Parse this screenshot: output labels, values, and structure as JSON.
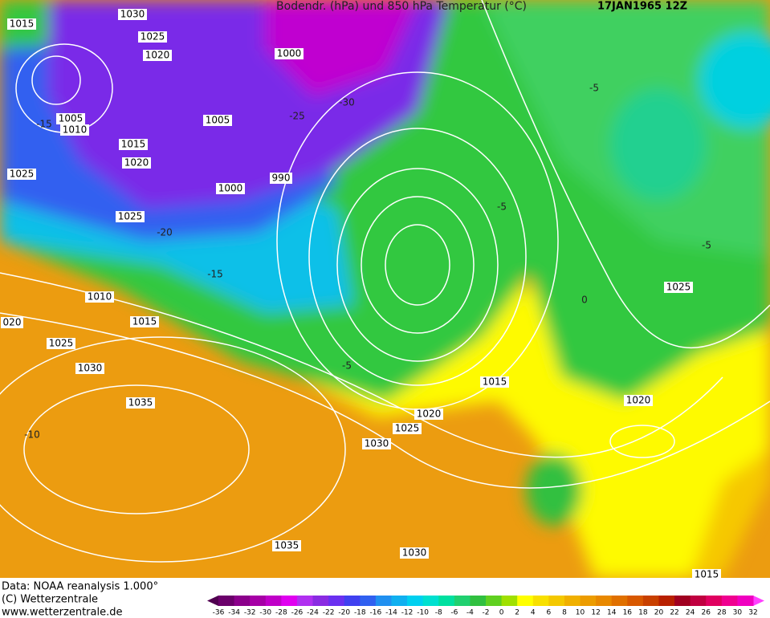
{
  "header": {
    "title": "Bodendr. (hPa) und 850 hPa Temperatur (°C)",
    "date": "17JAN1965 12Z"
  },
  "isobar_labels": [
    "1015",
    "1030",
    "1025",
    "1020",
    "1000",
    "1005",
    "1010",
    "1005",
    "1015",
    "1020",
    "1025",
    "1025",
    "1000",
    "990",
    "1025",
    "1010",
    "020",
    "1015",
    "1025",
    "1030",
    "1035",
    "1015",
    "1020",
    "1025",
    "1030",
    "1020",
    "1035",
    "1030",
    "1015"
  ],
  "temperature_labels": [
    "-15",
    "-30",
    "-25",
    "-20",
    "-15",
    "-5",
    "-5",
    "-5",
    "-5",
    "0",
    "-10"
  ],
  "footer": [
    "Data: NOAA reanalysis 1.000°",
    "(C) Wetterzentrale",
    "www.wetterzentrale.de"
  ],
  "colorbar": {
    "ticks": [
      -36,
      -34,
      -32,
      -30,
      -28,
      -26,
      -24,
      -22,
      -20,
      -18,
      -16,
      -14,
      -12,
      -10,
      -8,
      -6,
      -4,
      -2,
      0,
      2,
      4,
      6,
      8,
      10,
      12,
      14,
      16,
      18,
      20,
      22,
      24,
      26,
      28,
      30,
      32
    ],
    "colors": [
      "#6b006b",
      "#8b008b",
      "#a600a6",
      "#c000c8",
      "#e000f0",
      "#b030f0",
      "#8a2be2",
      "#6a30f0",
      "#4040f0",
      "#3060f0",
      "#2090f0",
      "#10b0f0",
      "#00d0f0",
      "#00e0d0",
      "#00e0a0",
      "#20d070",
      "#30c040",
      "#60d020",
      "#a0e000",
      "#ffff00",
      "#f8e000",
      "#f4c800",
      "#f0b000",
      "#ec9c00",
      "#e88800",
      "#e07000",
      "#d85800",
      "#c84000",
      "#b82000",
      "#a00020",
      "#c00040",
      "#e00060",
      "#f00090",
      "#f000c0"
    ],
    "low_color": "#500050",
    "high_color": "#ff40ff"
  }
}
